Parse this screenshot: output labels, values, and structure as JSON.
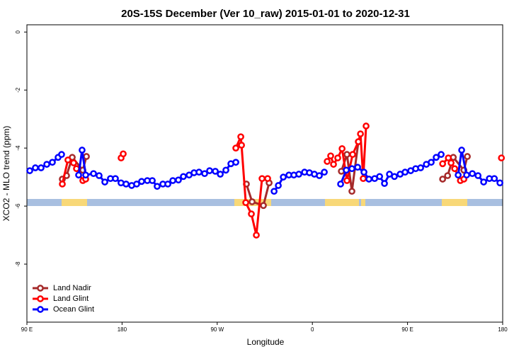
{
  "chart_data": {
    "type": "line",
    "title": "20S-15S December (Ver 10_raw)   2015-01-01 to 2020-12-31",
    "x_label": "Longitude",
    "y_label": "XCO2 - MLO trend (ppm)",
    "xlim": [
      90,
      540
    ],
    "ylim": [
      -10,
      0.25
    ],
    "xticks": [
      {
        "value": 90,
        "label": "90 E"
      },
      180,
      {
        "value": 270,
        "label": "90 W"
      },
      {
        "value": 360,
        "label": "0"
      },
      {
        "value": 450,
        "label": "90 E"
      },
      {
        "value": 540,
        "label": "180"
      }
    ],
    "yticks": [
      0,
      -2,
      -4,
      -6,
      -8
    ],
    "legend": "bottom-left",
    "series": [
      {
        "name": "Land Nadir",
        "color": "#a52a2a",
        "x": [
          123.5,
          127.5,
          132.9,
          142.9,
          146.3,
          200,
          297.6,
          303,
          313.7,
          319.1,
          350,
          387.4,
          392.7,
          397.4,
          403.5,
          450,
          483.2,
          487.9,
          493.3,
          503.3,
          506.6
        ],
        "values": [
          -5.07,
          -4.95,
          -4.32,
          -4.76,
          -4.29,
          null,
          -5.24,
          -5.85,
          -5.98,
          -5.2,
          null,
          -4.8,
          -4.22,
          -5.49,
          -3.78,
          null,
          -5.07,
          -4.95,
          -4.32,
          -4.76,
          -4.29
        ]
      },
      {
        "name": "Land Glint",
        "color": "#ff0000",
        "x": [
          123.5,
          128.8,
          134.2,
          136.9,
          142.9,
          145.6,
          160,
          179.1,
          181.1,
          230,
          287.6,
          292.3,
          293,
          297,
          302.3,
          307,
          312.4,
          317.7,
          350,
          374,
          377.3,
          380,
          384,
          388.1,
          392.7,
          398.1,
          403.5,
          405.5,
          408.1,
          410.8,
          450,
          483.2,
          488.6,
          491.2,
          494.6,
          500,
          503.3,
          520,
          538.8
        ],
        "values": [
          -5.24,
          -4.41,
          -4.51,
          -4.71,
          -5.12,
          -5.07,
          null,
          -4.34,
          -4.2,
          null,
          -4,
          -3.61,
          -3.9,
          -5.88,
          -6.27,
          -7,
          -5.05,
          -5.05,
          null,
          -4.46,
          -4.27,
          -4.56,
          -4.34,
          -4.02,
          -5.12,
          -4.22,
          -3.78,
          -3.51,
          -5.05,
          -3.24,
          null,
          -4.54,
          -4.34,
          -4.51,
          -4.71,
          -5.12,
          -5.07,
          null,
          -4.34
        ]
      },
      {
        "name": "Ocean Glint",
        "color": "#0000ff",
        "x": [
          92.7,
          98,
          103.4,
          108.8,
          114.1,
          119.5,
          122.8,
          130,
          138.9,
          142.2,
          145.6,
          153,
          158.3,
          163.7,
          169,
          173.7,
          179,
          183.8,
          189.1,
          193.8,
          198.5,
          203.9,
          208.6,
          213.2,
          218.6,
          223.3,
          228,
          233.3,
          238,
          243.4,
          248.1,
          252.8,
          258.1,
          262.8,
          268.2,
          272.9,
          278.2,
          282.9,
          287.6,
          300,
          323.8,
          327.8,
          332.5,
          337.8,
          342.5,
          347.2,
          352.6,
          357.2,
          361.9,
          366.6,
          371.3,
          380,
          386.7,
          392.1,
          397.4,
          402.8,
          408.8,
          413.5,
          418.9,
          423.6,
          428.2,
          432.9,
          437.6,
          443,
          447.7,
          453,
          457.7,
          462.4,
          467.8,
          472.4,
          477.1,
          481.8,
          490,
          497.9,
          501.2,
          505.9,
          511.3,
          516.7,
          522,
          527.4,
          532.1,
          537.4
        ],
        "values": [
          -4.78,
          -4.68,
          -4.68,
          -4.56,
          -4.49,
          -4.32,
          -4.22,
          null,
          -4.93,
          -4.07,
          -4.93,
          -4.88,
          -4.95,
          -5.17,
          -5.05,
          -5.05,
          -5.2,
          -5.24,
          -5.29,
          -5.24,
          -5.15,
          -5.12,
          -5.12,
          -5.32,
          -5.24,
          -5.24,
          -5.12,
          -5.1,
          -4.98,
          -4.93,
          -4.85,
          -4.83,
          -4.88,
          -4.78,
          -4.8,
          -4.9,
          -4.76,
          -4.54,
          -4.49,
          null,
          -5.49,
          -5.29,
          -5,
          -4.93,
          -4.93,
          -4.9,
          -4.83,
          -4.85,
          -4.9,
          -4.95,
          -4.83,
          null,
          -5.24,
          -4.76,
          -4.71,
          -4.66,
          -4.83,
          -5.07,
          -5.05,
          -4.98,
          -5.22,
          -4.9,
          -4.98,
          -4.9,
          -4.83,
          -4.78,
          -4.71,
          -4.68,
          -4.56,
          -4.49,
          -4.32,
          -4.22,
          null,
          -4.93,
          -4.07,
          -4.93,
          -4.88,
          -4.95,
          -5.17,
          -5.05,
          -5.05,
          -5.2
        ]
      }
    ]
  }
}
